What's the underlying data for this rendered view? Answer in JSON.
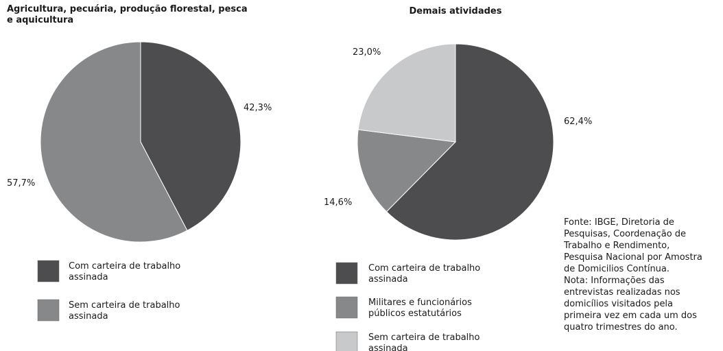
{
  "chart_data": [
    {
      "type": "pie",
      "title": "Agricultura, pecuária, produção florestal, pesca e aquicultura",
      "categories": [
        "Com carteira de trabalho assinada",
        "Sem carteira de trabalho assinada"
      ],
      "values": [
        42.3,
        57.7
      ],
      "value_labels": [
        "42,3%",
        "57,7%"
      ],
      "colors": [
        "#4d4d4f",
        "#87888a"
      ]
    },
    {
      "type": "pie",
      "title": "Demais atividades",
      "categories": [
        "Com carteira de trabalho assinada",
        "Militares e funcionários públicos estatutários",
        "Sem carteira de trabalho assinada"
      ],
      "values": [
        62.4,
        14.6,
        23.0
      ],
      "value_labels": [
        "62,4%",
        "14,6%",
        "23,0%"
      ],
      "colors": [
        "#4d4d4f",
        "#87888a",
        "#c8c9cb"
      ]
    }
  ],
  "source_lines": [
    "Fonte: IBGE, Diretoria de",
    "Pesquisas, Coordenação de",
    "Trabalho e Rendimento,",
    "Pesquisa Nacional por Amostra",
    "de Domicilios Contínua.",
    "Nota: Informações das",
    "entrevistas realizadas nos",
    "domicílios visitados pela",
    "primeira vez em cada um dos",
    "quatro trimestres do ano."
  ]
}
